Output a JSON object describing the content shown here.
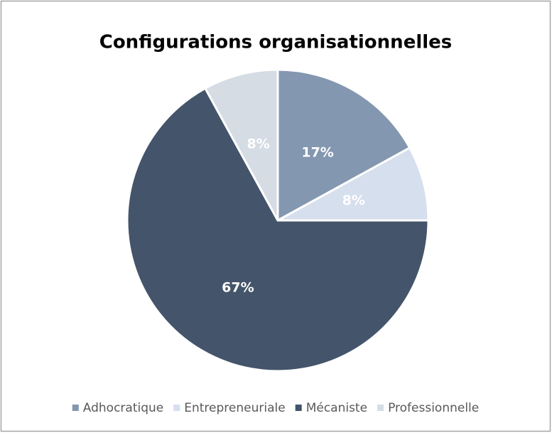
{
  "chart_data": {
    "type": "pie",
    "title": "Configurations organisationnelles",
    "categories": [
      "Adhocratique",
      "Entrepreneuriale",
      "Mécaniste",
      "Professionnelle"
    ],
    "values": [
      17,
      8,
      67,
      8
    ],
    "value_labels": [
      "17%",
      "8%",
      "67%",
      "8%"
    ],
    "colors": [
      "#8497b0",
      "#d6dfee",
      "#44546a",
      "#d5dce4"
    ],
    "legend": "bottom"
  }
}
